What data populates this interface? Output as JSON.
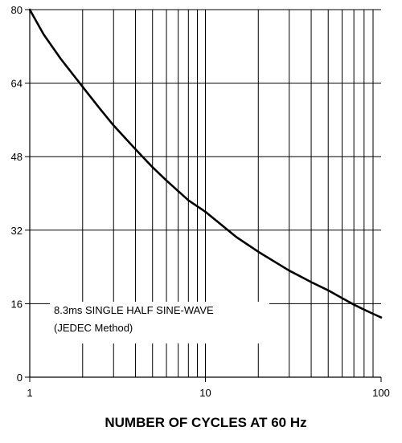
{
  "chart_data": {
    "type": "line",
    "title": "",
    "xlabel": "NUMBER OF CYCLES AT 60 Hz",
    "ylabel": "",
    "x_scale": "log",
    "xlim": [
      1,
      100
    ],
    "ylim": [
      0,
      80
    ],
    "x_ticks": [
      {
        "value": 1,
        "label": "1"
      },
      {
        "value": 10,
        "label": "10"
      },
      {
        "value": 100,
        "label": "100"
      }
    ],
    "y_ticks": [
      {
        "value": 0,
        "label": "0"
      },
      {
        "value": 16,
        "label": "16"
      },
      {
        "value": 32,
        "label": "32"
      },
      {
        "value": 48,
        "label": "48"
      },
      {
        "value": 64,
        "label": "64"
      },
      {
        "value": 80,
        "label": "80"
      }
    ],
    "grid": true,
    "annotation": {
      "lines": [
        "8.3ms SINGLE HALF SINE-WAVE",
        "(JEDEC Method)"
      ]
    },
    "series": [
      {
        "x": [
          1,
          1.2,
          1.5,
          2,
          2.5,
          3,
          4,
          5,
          6,
          8,
          10,
          15,
          20,
          30,
          40,
          50,
          60,
          70,
          80,
          90,
          100
        ],
        "y": [
          80,
          74.6,
          69.3,
          63.2,
          58.5,
          54.8,
          49.6,
          45.7,
          42.8,
          38.5,
          36,
          30.5,
          27.3,
          23.2,
          20.7,
          18.9,
          17.2,
          15.8,
          14.7,
          13.8,
          13
        ]
      }
    ],
    "colors": {
      "axis": "#000000",
      "grid": "#000000",
      "curve": "#000000"
    }
  }
}
